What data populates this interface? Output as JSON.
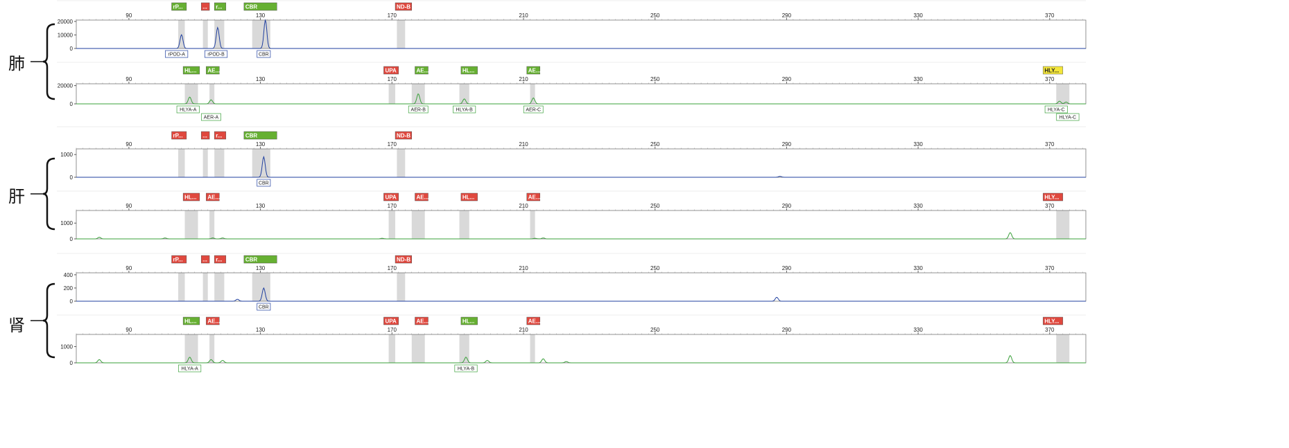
{
  "organs": [
    {
      "label": "肺"
    },
    {
      "label": "肝"
    },
    {
      "label": "肾"
    }
  ],
  "x_ticks": [
    90,
    130,
    170,
    210,
    250,
    290,
    330,
    370
  ],
  "colors": {
    "green_tag": "#66b032",
    "red_tag": "#e0483e",
    "yellow_tag": "#f4e63a",
    "blue_trace": "#1f3f9f",
    "green_trace": "#3aa03a",
    "bin_shade": "#d9d9d9"
  },
  "chart_data": [
    {
      "type": "line",
      "organ": "肺",
      "channel": "blue",
      "x_range": [
        74,
        381
      ],
      "y_ticks": [
        0,
        10000,
        20000
      ],
      "y_range": [
        0,
        21000
      ],
      "bins": [
        [
          105,
          107
        ],
        [
          112.5,
          114
        ],
        [
          116,
          119
        ],
        [
          127.5,
          133
        ],
        [
          171.5,
          174
        ]
      ],
      "tags": [
        {
          "label": "rP...",
          "x_start": 103,
          "x_end": 107.5,
          "color": "green"
        },
        {
          "label": "...",
          "x_start": 112,
          "x_end": 114.5,
          "color": "red"
        },
        {
          "label": "r...",
          "x_start": 116,
          "x_end": 119.5,
          "color": "green"
        },
        {
          "label": "CBR",
          "x_start": 125,
          "x_end": 135,
          "color": "green"
        },
        {
          "label": "ND-B",
          "x_start": 171,
          "x_end": 176,
          "color": "red"
        }
      ],
      "peaks": [
        {
          "x": 106,
          "y": 10200
        },
        {
          "x": 117,
          "y": 15500
        },
        {
          "x": 131.5,
          "y": 21000
        }
      ],
      "peak_labels": [
        {
          "label": "rPOD-A",
          "x": 104.5
        },
        {
          "label": "rPOD-B",
          "x": 116.5
        },
        {
          "label": "CBR",
          "x": 131
        }
      ]
    },
    {
      "type": "line",
      "organ": "肺",
      "channel": "green",
      "x_range": [
        74,
        381
      ],
      "y_ticks": [
        0,
        20000
      ],
      "y_range": [
        0,
        22000
      ],
      "bins": [
        [
          107,
          111
        ],
        [
          114.5,
          116
        ],
        [
          169,
          171
        ],
        [
          176,
          180
        ],
        [
          190.5,
          193.5
        ],
        [
          212,
          213.5
        ],
        [
          372,
          376
        ]
      ],
      "tags": [
        {
          "label": "HL...",
          "x_start": 106.5,
          "x_end": 111.5,
          "color": "green"
        },
        {
          "label": "AE...",
          "x_start": 113.5,
          "x_end": 117.5,
          "color": "green"
        },
        {
          "label": "UPA",
          "x_start": 167.5,
          "x_end": 172,
          "color": "red"
        },
        {
          "label": "AE...",
          "x_start": 177,
          "x_end": 181,
          "color": "green"
        },
        {
          "label": "HL...",
          "x_start": 191,
          "x_end": 196,
          "color": "green"
        },
        {
          "label": "AE...",
          "x_start": 211,
          "x_end": 215,
          "color": "green"
        },
        {
          "label": "HLY...",
          "x_start": 368,
          "x_end": 374,
          "color": "yellow"
        }
      ],
      "peaks": [
        {
          "x": 108.5,
          "y": 7500
        },
        {
          "x": 115,
          "y": 4500
        },
        {
          "x": 178,
          "y": 11000
        },
        {
          "x": 192,
          "y": 5500
        },
        {
          "x": 213,
          "y": 6500
        },
        {
          "x": 373,
          "y": 3000
        },
        {
          "x": 375,
          "y": 2000
        }
      ],
      "peak_labels": [
        {
          "label": "HLYA-A",
          "x": 108
        },
        {
          "label": "AER-A",
          "x": 115
        },
        {
          "label": "AER-B",
          "x": 178
        },
        {
          "label": "HLYA-B",
          "x": 192
        },
        {
          "label": "AER-C",
          "x": 213
        },
        {
          "label": "HLYA-C",
          "x": 372
        },
        {
          "label": "HLYA-C",
          "x": 375.5
        }
      ]
    },
    {
      "type": "line",
      "organ": "肝",
      "channel": "blue",
      "x_range": [
        74,
        381
      ],
      "y_ticks": [
        0,
        1000
      ],
      "y_range": [
        0,
        1250
      ],
      "bins": [
        [
          105,
          107
        ],
        [
          112.5,
          114
        ],
        [
          116,
          119
        ],
        [
          127.5,
          133
        ],
        [
          171.5,
          174
        ]
      ],
      "tags": [
        {
          "label": "rP...",
          "x_start": 103,
          "x_end": 107.5,
          "color": "red"
        },
        {
          "label": "...",
          "x_start": 112,
          "x_end": 114.5,
          "color": "red"
        },
        {
          "label": "r...",
          "x_start": 116,
          "x_end": 119.5,
          "color": "red"
        },
        {
          "label": "CBR",
          "x_start": 125,
          "x_end": 135,
          "color": "green"
        },
        {
          "label": "ND-B",
          "x_start": 171,
          "x_end": 176,
          "color": "red"
        }
      ],
      "peaks": [
        {
          "x": 131,
          "y": 900
        },
        {
          "x": 288,
          "y": 40
        }
      ],
      "peak_labels": [
        {
          "label": "CBR",
          "x": 131
        }
      ]
    },
    {
      "type": "line",
      "organ": "肝",
      "channel": "green",
      "x_range": [
        74,
        381
      ],
      "y_ticks": [
        0,
        1000
      ],
      "y_range": [
        0,
        1800
      ],
      "bins": [
        [
          107,
          111
        ],
        [
          114.5,
          116
        ],
        [
          169,
          171
        ],
        [
          176,
          180
        ],
        [
          190.5,
          193.5
        ],
        [
          212,
          213.5
        ],
        [
          372,
          376
        ]
      ],
      "tags": [
        {
          "label": "HL...",
          "x_start": 106.5,
          "x_end": 111.5,
          "color": "red"
        },
        {
          "label": "AE...",
          "x_start": 113.5,
          "x_end": 117.5,
          "color": "red"
        },
        {
          "label": "UPA",
          "x_start": 167.5,
          "x_end": 172,
          "color": "red"
        },
        {
          "label": "AE...",
          "x_start": 177,
          "x_end": 181,
          "color": "red"
        },
        {
          "label": "HL...",
          "x_start": 191,
          "x_end": 196,
          "color": "red"
        },
        {
          "label": "AE...",
          "x_start": 211,
          "x_end": 215,
          "color": "red"
        },
        {
          "label": "HLY...",
          "x_start": 368,
          "x_end": 374,
          "color": "red"
        }
      ],
      "peaks": [
        {
          "x": 81,
          "y": 100
        },
        {
          "x": 101,
          "y": 60
        },
        {
          "x": 115.5,
          "y": 60
        },
        {
          "x": 118.5,
          "y": 60
        },
        {
          "x": 167,
          "y": 40
        },
        {
          "x": 213.5,
          "y": 40
        },
        {
          "x": 216,
          "y": 60
        },
        {
          "x": 358,
          "y": 400
        }
      ],
      "peak_labels": []
    },
    {
      "type": "line",
      "organ": "肾",
      "channel": "blue",
      "x_range": [
        74,
        381
      ],
      "y_ticks": [
        0,
        200,
        400
      ],
      "y_range": [
        0,
        430
      ],
      "bins": [
        [
          105,
          107
        ],
        [
          112.5,
          114
        ],
        [
          116,
          119
        ],
        [
          127.5,
          133
        ],
        [
          171.5,
          174
        ]
      ],
      "tags": [
        {
          "label": "rP...",
          "x_start": 103,
          "x_end": 107.5,
          "color": "red"
        },
        {
          "label": "...",
          "x_start": 112,
          "x_end": 114.5,
          "color": "red"
        },
        {
          "label": "r...",
          "x_start": 116,
          "x_end": 119.5,
          "color": "red"
        },
        {
          "label": "CBR",
          "x_start": 125,
          "x_end": 135,
          "color": "green"
        },
        {
          "label": "ND-B",
          "x_start": 171,
          "x_end": 176,
          "color": "red"
        }
      ],
      "peaks": [
        {
          "x": 131,
          "y": 200
        },
        {
          "x": 123,
          "y": 30
        },
        {
          "x": 287,
          "y": 60
        }
      ],
      "peak_labels": [
        {
          "label": "CBR",
          "x": 131
        }
      ]
    },
    {
      "type": "line",
      "organ": "肾",
      "channel": "green",
      "x_range": [
        74,
        381
      ],
      "y_ticks": [
        0,
        1000
      ],
      "y_range": [
        0,
        1750
      ],
      "bins": [
        [
          107,
          111
        ],
        [
          114.5,
          116
        ],
        [
          169,
          171
        ],
        [
          176,
          180
        ],
        [
          190.5,
          193.5
        ],
        [
          212,
          213.5
        ],
        [
          372,
          376
        ]
      ],
      "tags": [
        {
          "label": "HL...",
          "x_start": 106.5,
          "x_end": 111.5,
          "color": "green"
        },
        {
          "label": "AE...",
          "x_start": 113.5,
          "x_end": 117.5,
          "color": "red"
        },
        {
          "label": "UPA",
          "x_start": 167.5,
          "x_end": 172,
          "color": "red"
        },
        {
          "label": "AE...",
          "x_start": 177,
          "x_end": 181,
          "color": "red"
        },
        {
          "label": "HL...",
          "x_start": 191,
          "x_end": 196,
          "color": "green"
        },
        {
          "label": "AE...",
          "x_start": 211,
          "x_end": 215,
          "color": "red"
        },
        {
          "label": "HLY...",
          "x_start": 368,
          "x_end": 374,
          "color": "red"
        }
      ],
      "peaks": [
        {
          "x": 81,
          "y": 200
        },
        {
          "x": 108.5,
          "y": 350
        },
        {
          "x": 115,
          "y": 200
        },
        {
          "x": 118.5,
          "y": 150
        },
        {
          "x": 192.5,
          "y": 350
        },
        {
          "x": 199,
          "y": 150
        },
        {
          "x": 216,
          "y": 250
        },
        {
          "x": 223,
          "y": 80
        },
        {
          "x": 358,
          "y": 450
        }
      ],
      "peak_labels": [
        {
          "label": "HLYA-A",
          "x": 108.5
        },
        {
          "label": "HLYA-B",
          "x": 192.5
        }
      ]
    }
  ]
}
